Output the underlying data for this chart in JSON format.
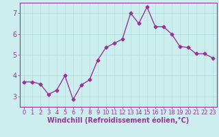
{
  "x": [
    0,
    1,
    2,
    3,
    4,
    5,
    6,
    7,
    8,
    9,
    10,
    11,
    12,
    13,
    14,
    15,
    16,
    17,
    18,
    19,
    20,
    21,
    22,
    23
  ],
  "y": [
    3.7,
    3.7,
    3.6,
    3.1,
    3.3,
    4.0,
    2.85,
    3.55,
    3.8,
    4.75,
    5.35,
    5.55,
    5.75,
    7.0,
    6.5,
    7.3,
    6.35,
    6.35,
    6.0,
    5.4,
    5.35,
    5.05,
    5.05,
    4.85
  ],
  "line_color": "#993399",
  "marker": "D",
  "marker_size": 2.5,
  "xlabel": "Windchill (Refroidissement éolien,°C)",
  "xlabel_fontsize": 7,
  "ylim": [
    2.5,
    7.5
  ],
  "xlim": [
    -0.5,
    23.5
  ],
  "yticks": [
    3,
    4,
    5,
    6,
    7
  ],
  "xticks": [
    0,
    1,
    2,
    3,
    4,
    5,
    6,
    7,
    8,
    9,
    10,
    11,
    12,
    13,
    14,
    15,
    16,
    17,
    18,
    19,
    20,
    21,
    22,
    23
  ],
  "grid_color": "#aadddd",
  "bg_color": "#cceeee",
  "tick_color": "#993399",
  "tick_fontsize": 6,
  "line_width": 1.0
}
